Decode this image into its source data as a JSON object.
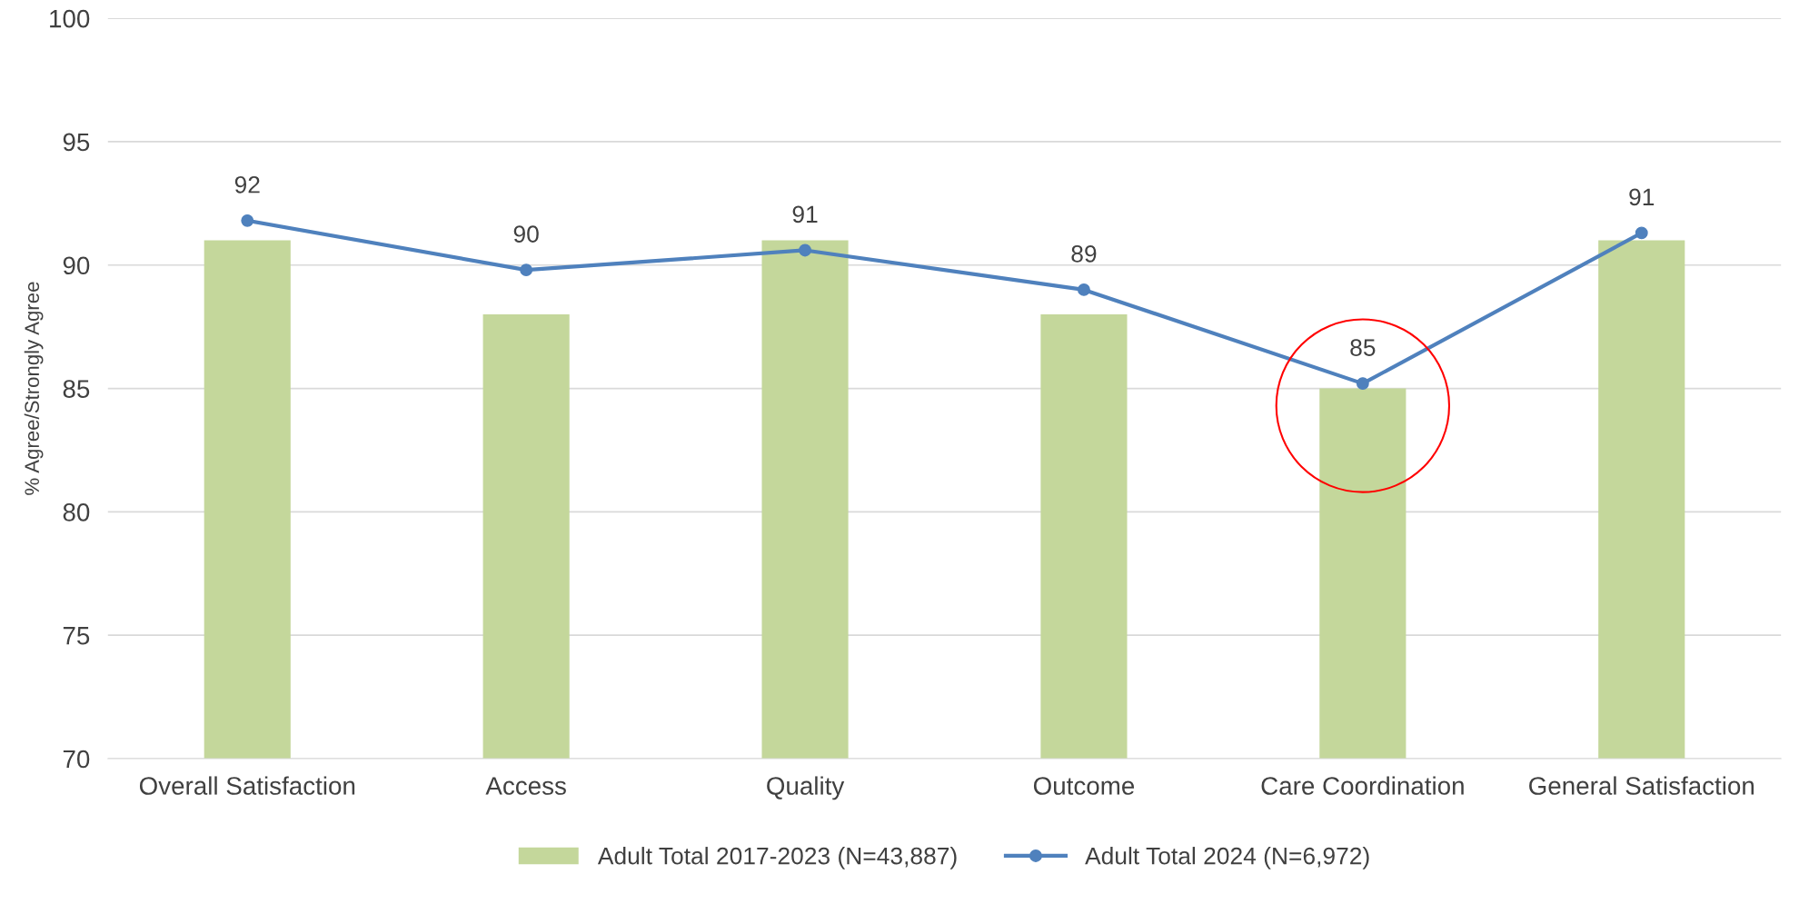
{
  "chart_data": {
    "type": "bar",
    "ylabel": "% Agree/Strongly Agree",
    "categories": [
      "Overall Satisfaction",
      "Access",
      "Quality",
      "Outcome",
      "Care Coordination",
      "General Satisfaction"
    ],
    "series": [
      {
        "name": "Adult Total 2017-2023 (N=43,887)",
        "color": "#c4d79b",
        "values": [
          91,
          88,
          91,
          88,
          85,
          91
        ]
      },
      {
        "name": "Adult Total 2024 (N=6,972)",
        "type": "line",
        "color": "#4f81bd",
        "values": [
          91.8,
          89.8,
          90.6,
          89.0,
          85.2,
          91.3
        ],
        "value_labels": [
          "92",
          "90",
          "91",
          "89",
          "85",
          "91"
        ],
        "marker": "circle"
      }
    ],
    "ylim": [
      70,
      100
    ],
    "yticks": [
      70,
      75,
      80,
      85,
      90,
      95,
      100
    ],
    "grid": "y",
    "legend": "bottom"
  }
}
